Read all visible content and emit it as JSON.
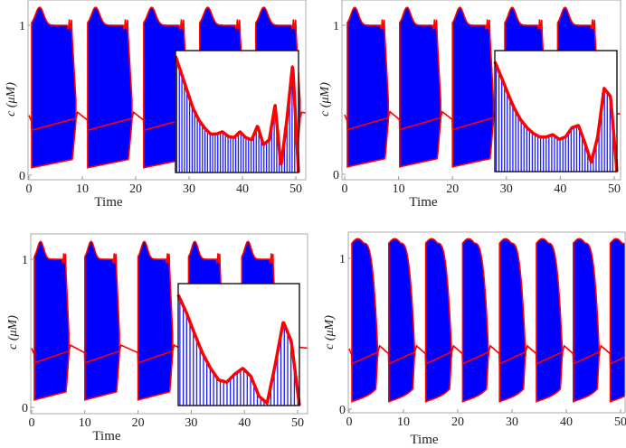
{
  "chart_data": [
    {
      "type": "line",
      "xlabel": "Time",
      "ylabel": "c (μM)",
      "xlim": [
        0,
        51.5
      ],
      "ylim": [
        -0.03,
        1.2
      ],
      "xticks": [
        0,
        10,
        20,
        30,
        40,
        50
      ],
      "yticks": [
        0,
        1
      ],
      "burst_onsets": [
        0.5,
        11,
        21.5,
        32,
        42.5
      ],
      "burst_duration": 8.3,
      "fill_color": "#0000ff",
      "line_color": "#ff0000",
      "burst_shape": "plateau",
      "inset": {
        "envelope": [
          1.0,
          0.85,
          0.7,
          0.55,
          0.45,
          0.38,
          0.33,
          0.33,
          0.35,
          0.31,
          0.3,
          0.35,
          0.3,
          0.28,
          0.4,
          0.24,
          0.28,
          0.58,
          0.05,
          0.45,
          0.93,
          0.0
        ],
        "spikes": 48
      }
    },
    {
      "type": "line",
      "xlabel": "Time",
      "ylabel": "c (μM)",
      "xlim": [
        0,
        51.5
      ],
      "ylim": [
        -0.03,
        1.2
      ],
      "xticks": [
        0,
        10,
        20,
        30,
        40,
        50
      ],
      "yticks": [
        0,
        1
      ],
      "burst_onsets": [
        0.5,
        10.2,
        20,
        29.7,
        39.5
      ],
      "burst_duration": 7.6,
      "fill_color": "#0000ff",
      "line_color": "#ff0000",
      "burst_shape": "plateau",
      "inset": {
        "envelope": [
          0.95,
          0.82,
          0.68,
          0.55,
          0.45,
          0.38,
          0.33,
          0.3,
          0.3,
          0.32,
          0.28,
          0.3,
          0.38,
          0.4,
          0.25,
          0.08,
          0.3,
          0.72,
          0.65,
          0.0
        ],
        "spikes": 44
      }
    },
    {
      "type": "line",
      "xlabel": "Time",
      "ylabel": "c (μM)",
      "xlim": [
        0,
        51.5
      ],
      "ylim": [
        -0.03,
        1.2
      ],
      "xticks": [
        0,
        10,
        20,
        30,
        40,
        50
      ],
      "yticks": [
        0,
        1
      ],
      "burst_onsets": [
        0.5,
        10,
        20,
        29.5,
        39.5
      ],
      "burst_duration": 6.5,
      "fill_color": "#0000ff",
      "line_color": "#ff0000",
      "burst_shape": "plateau",
      "inset": {
        "envelope": [
          0.95,
          0.8,
          0.62,
          0.45,
          0.32,
          0.22,
          0.2,
          0.27,
          0.32,
          0.25,
          0.08,
          0.02,
          0.35,
          0.72,
          0.55,
          0.0
        ],
        "spikes": 36
      }
    },
    {
      "type": "line",
      "xlabel": "Time",
      "ylabel": "c (μM)",
      "xlim": [
        0,
        51.5
      ],
      "ylim": [
        -0.03,
        1.2
      ],
      "xticks": [
        0,
        10,
        20,
        30,
        40,
        50
      ],
      "yticks": [
        0,
        1
      ],
      "burst_onsets": [
        0.5,
        7.3,
        14.1,
        20.9,
        27.7,
        34.5,
        41.3,
        48.1
      ],
      "burst_duration": 4.8,
      "fill_color": "#0000ff",
      "line_color": "#ff0000",
      "burst_shape": "rounded"
    }
  ]
}
